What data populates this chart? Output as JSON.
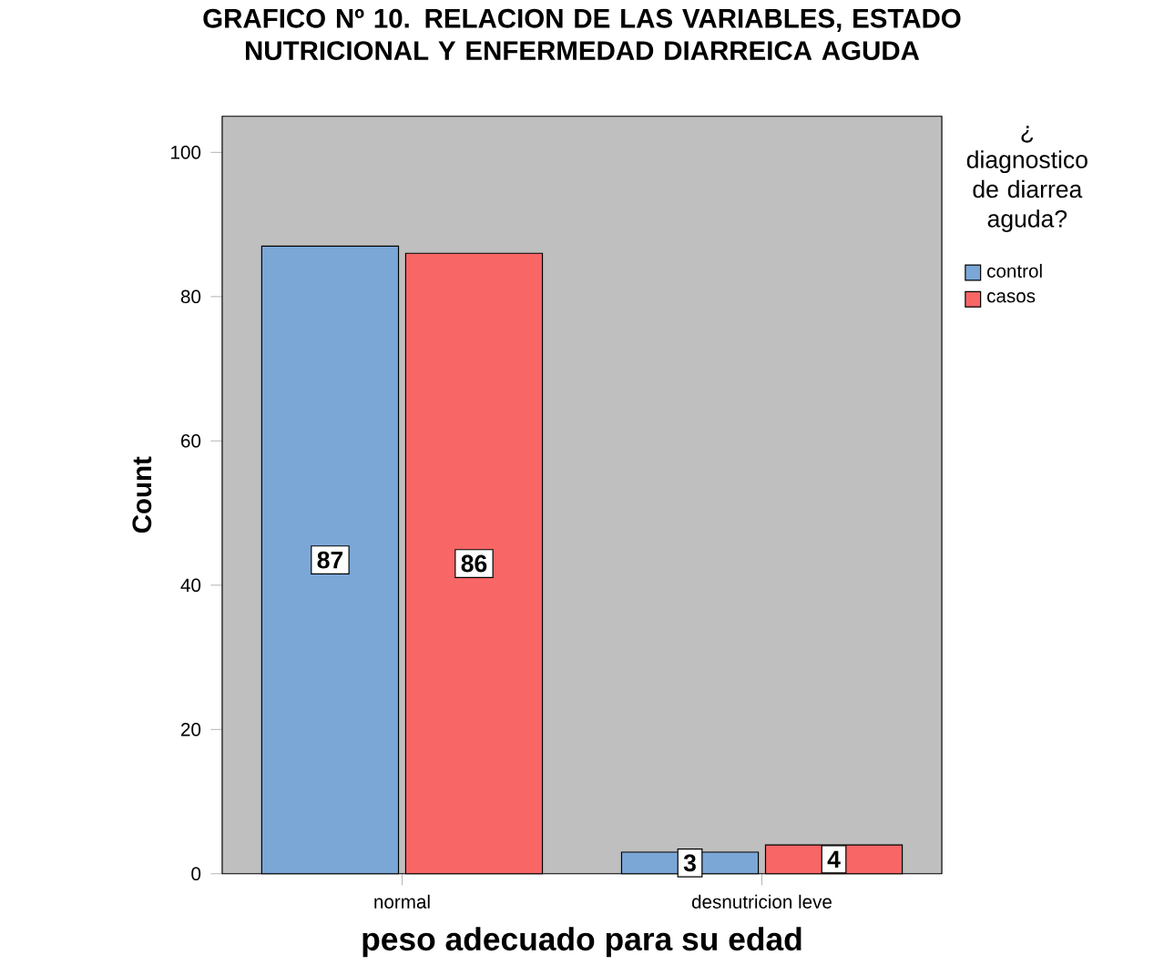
{
  "chart_data": {
    "type": "bar",
    "title": "GRAFICO Nº 10. RELACION DE LAS VARIABLES, ESTADO NUTRICIONAL Y ENFERMEDAD DIARREICA AGUDA",
    "xlabel": "peso adecuado para su edad",
    "ylabel": "Count",
    "legend_title": "¿ diagnostico de diarrea aguda?",
    "categories": [
      "normal",
      "desnutricion leve"
    ],
    "series": [
      {
        "name": "control",
        "color": "#7ba7d7",
        "values": [
          87,
          3
        ]
      },
      {
        "name": "casos",
        "color": "#f86666",
        "values": [
          86,
          4
        ]
      }
    ],
    "ylim": [
      0,
      105
    ],
    "yticks": [
      0,
      20,
      40,
      60,
      80,
      100
    ],
    "data_labels": true,
    "legend": "top right"
  }
}
